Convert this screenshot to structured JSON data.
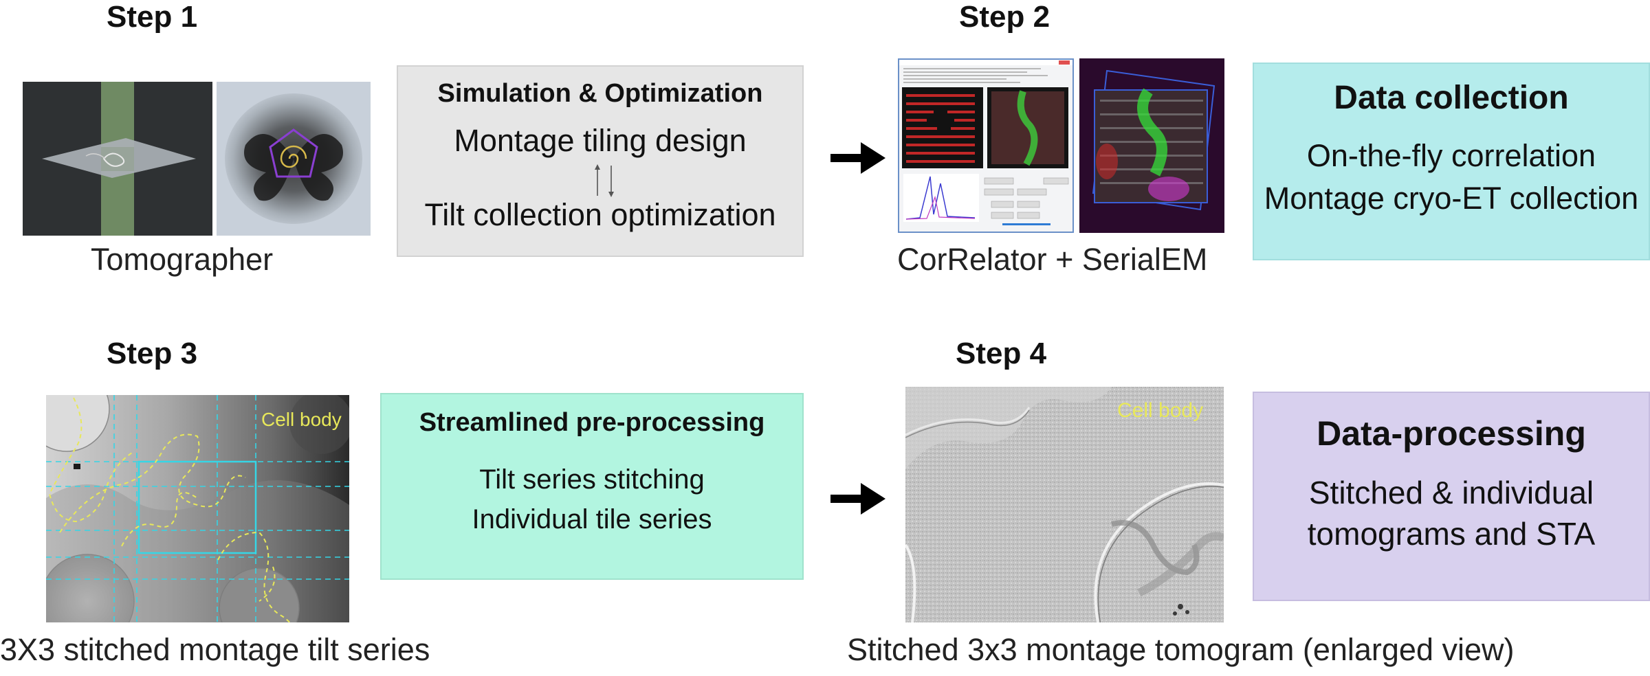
{
  "steps": {
    "s1": "Step 1",
    "s2": "Step 2",
    "s3": "Step 3",
    "s4": "Step 4"
  },
  "captions": {
    "tomographer": "Tomographer",
    "correlator": "CorRelator + SerialEM",
    "montage_series": "3X3 stitched montage tilt series",
    "montage_tomogram": "Stitched 3x3 montage tomogram (enlarged view)"
  },
  "boxes": {
    "simulation": {
      "title": "Simulation & Optimization",
      "line1": "Montage tiling design",
      "line2": "Tilt collection optimization"
    },
    "collection": {
      "title": "Data collection",
      "line1": "On-the-fly correlation",
      "line2": "Montage cryo-ET collection"
    },
    "preprocessing": {
      "title": "Streamlined pre-processing",
      "line1": "Tilt series stitching",
      "line2": "Individual tile series"
    },
    "processing": {
      "title": "Data-processing",
      "line1": "Stitched & individual",
      "line2": "tomograms and STA"
    }
  },
  "labels": {
    "cell_body_1": "Cell body",
    "cell_body_2": "Cell body"
  },
  "colors": {
    "simulation_bg": "#e6e6e6",
    "collection_bg": "#b5ecec",
    "preprocessing_bg": "#b2f5e0",
    "processing_bg": "#d8d0ee",
    "annotation_yellow": "#e8e85a",
    "grid_cyan": "#35d6e6"
  }
}
